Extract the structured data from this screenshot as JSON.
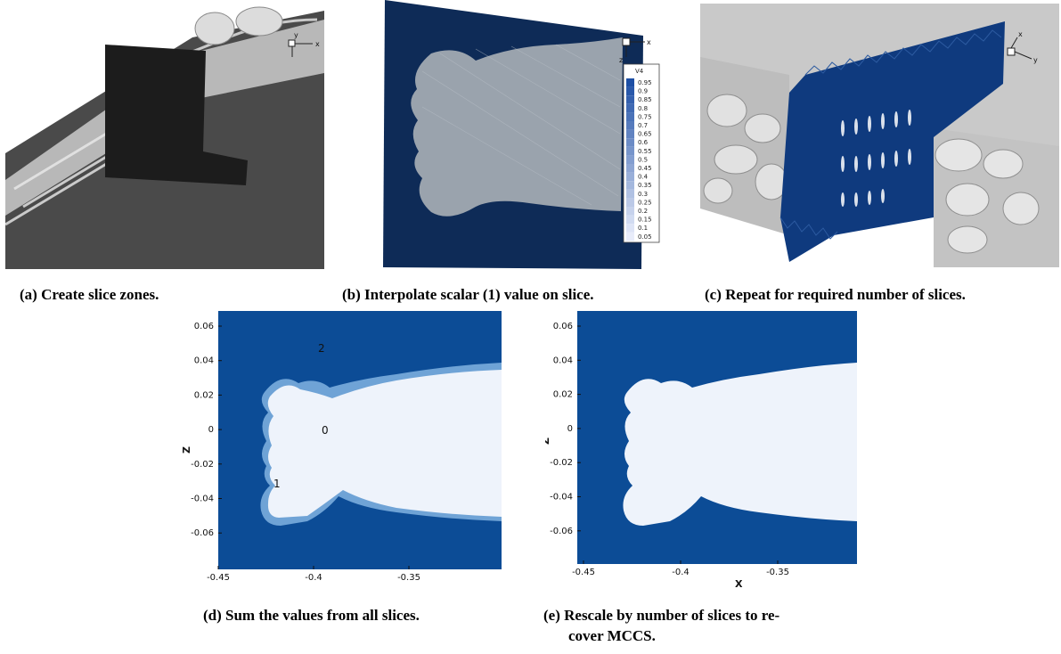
{
  "panels": {
    "a": {
      "caption": "(a) Create slice zones.",
      "triad": {
        "x": "x",
        "y": "y"
      }
    },
    "b": {
      "caption": "(b) Interpolate scalar (1) value on slice.",
      "triad": {
        "x": "x",
        "z": "z"
      },
      "legend": {
        "title": "V4",
        "levels": [
          "0.95",
          "0.9",
          "0.85",
          "0.8",
          "0.75",
          "0.7",
          "0.65",
          "0.6",
          "0.55",
          "0.5",
          "0.45",
          "0.4",
          "0.35",
          "0.3",
          "0.25",
          "0.2",
          "0.15",
          "0.1",
          "0.05"
        ]
      }
    },
    "c": {
      "caption": "(c) Repeat for required number of slices.",
      "triad": {
        "x": "x",
        "y": "y"
      }
    },
    "d": {
      "caption": "(d) Sum the values from all slices.",
      "xticks": [
        "-0.45",
        "-0.4",
        "-0.35"
      ],
      "yticks": [
        "0.06",
        "0.04",
        "0.02",
        "0",
        "-0.02",
        "-0.04",
        "-0.06"
      ],
      "ylabel": "Z",
      "region_labels": {
        "outer": "2",
        "inner": "0",
        "edge": "1"
      }
    },
    "e": {
      "caption_line1": "(e) Rescale by number of slices to re-",
      "caption_line2": "cover MCCS.",
      "xticks": [
        "-0.45",
        "-0.4",
        "-0.35"
      ],
      "yticks": [
        "0.06",
        "0.04",
        "0.02",
        "0",
        "-0.02",
        "-0.04",
        "-0.06"
      ],
      "xlabel": "X",
      "ylabel": "Z"
    }
  },
  "colors": {
    "navy": "#0e2b57",
    "plot_blue": "#0c4c96",
    "light": "#eef3fb",
    "mid_blue": "#6fa3d6"
  }
}
